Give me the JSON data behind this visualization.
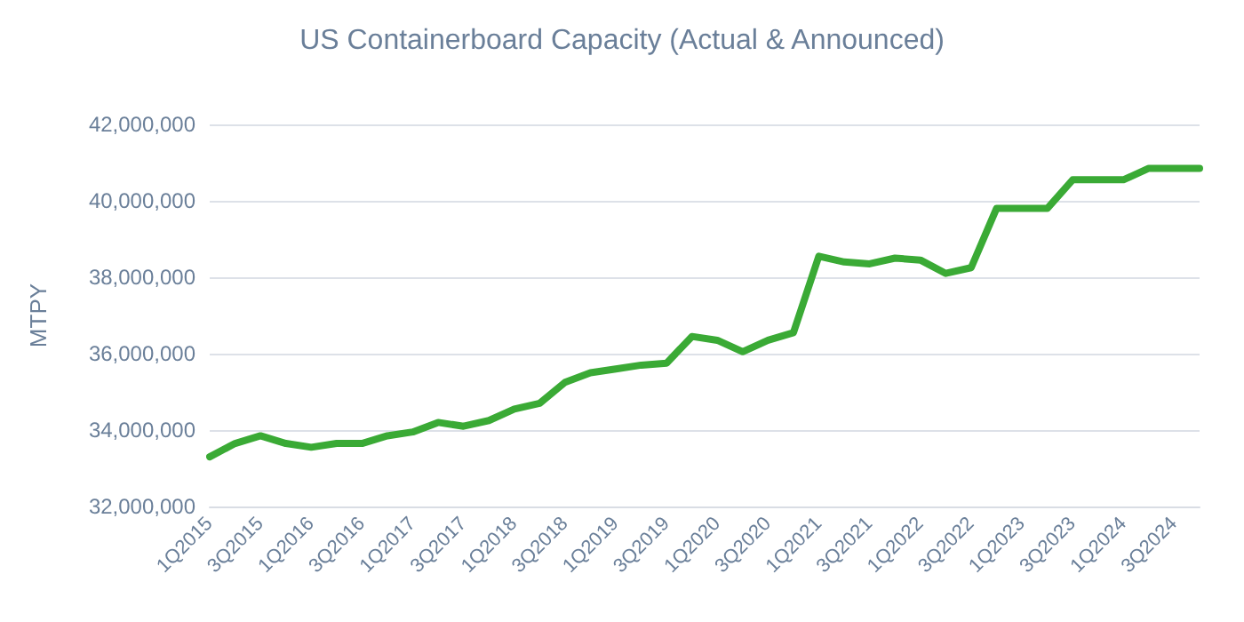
{
  "chart_data": {
    "type": "line",
    "title": "US Containerboard Capacity (Actual & Announced)",
    "ylabel": "MTPY",
    "categories": [
      "1Q2015",
      null,
      "3Q2015",
      null,
      "1Q2016",
      null,
      "3Q2016",
      null,
      "1Q2017",
      null,
      "3Q2017",
      null,
      "1Q2018",
      null,
      "3Q2018",
      null,
      "1Q2019",
      null,
      "3Q2019",
      null,
      "1Q2020",
      null,
      "3Q2020",
      null,
      "1Q2021",
      null,
      "3Q2021",
      null,
      "1Q2022",
      null,
      "3Q2022",
      null,
      "1Q2023",
      null,
      "3Q2023",
      null,
      "1Q2024",
      null,
      "3Q2024",
      null
    ],
    "series": [
      {
        "color": "#3aaa35",
        "values": [
          33300000,
          33650000,
          33850000,
          33650000,
          33550000,
          33650000,
          33650000,
          33850000,
          33950000,
          34200000,
          34100000,
          34250000,
          34550000,
          34700000,
          35250000,
          35500000,
          35600000,
          35700000,
          35750000,
          36450000,
          36350000,
          36050000,
          36350000,
          36550000,
          38550000,
          38400000,
          38350000,
          38500000,
          38450000,
          38100000,
          38250000,
          39800000,
          39800000,
          39800000,
          40550000,
          40550000,
          40550000,
          40850000,
          40850000,
          40850000
        ]
      }
    ],
    "ylim": [
      32000000,
      42000000
    ],
    "yticks": [
      {
        "value": 32000000,
        "label": "32,000,000"
      },
      {
        "value": 34000000,
        "label": "34,000,000"
      },
      {
        "value": 36000000,
        "label": "36,000,000"
      },
      {
        "value": 38000000,
        "label": "38,000,000"
      },
      {
        "value": 40000000,
        "label": "40,000,000"
      },
      {
        "value": 42000000,
        "label": "42,000,000"
      }
    ],
    "grid": "y",
    "marker": "none",
    "line_style": "solid"
  }
}
